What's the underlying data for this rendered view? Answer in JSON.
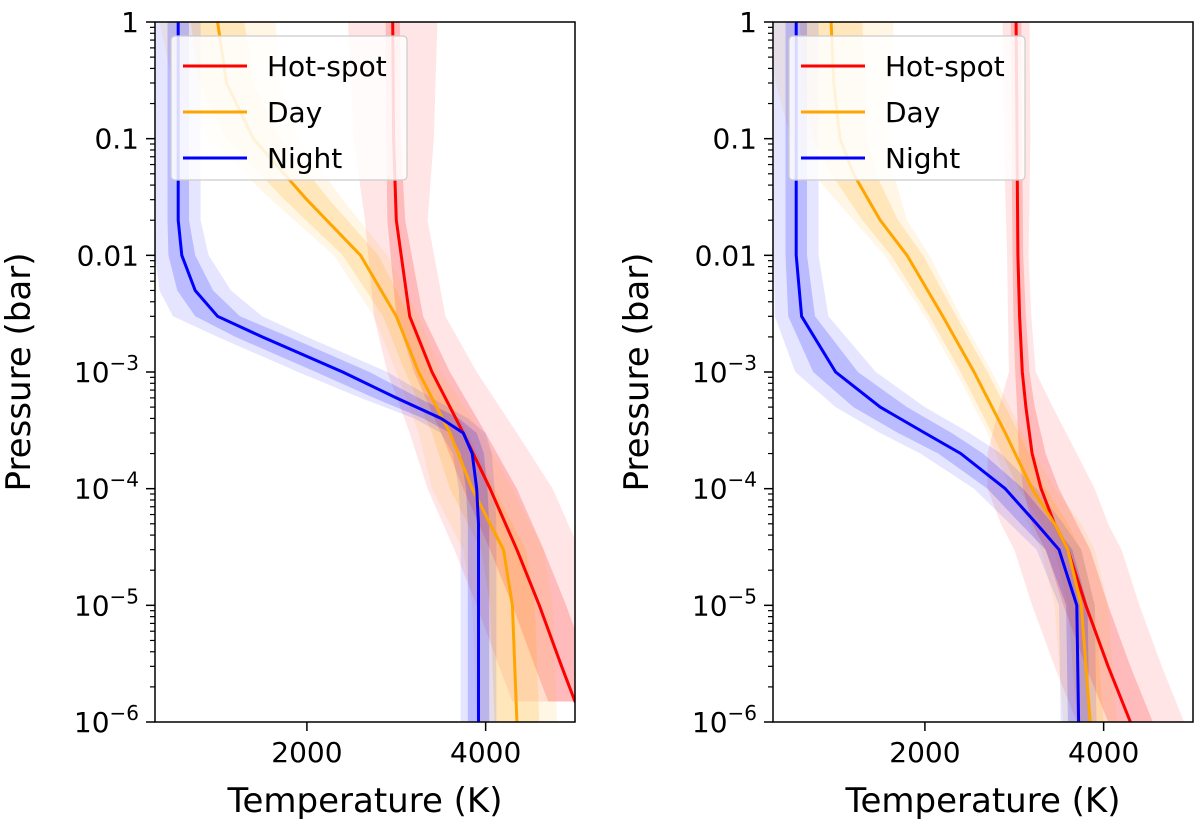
{
  "figure": {
    "tick_labels": {
      "y": [
        "10−6",
        "10−5",
        "10−4",
        "10−3",
        "0.01",
        "0.1",
        "1"
      ],
      "x": [
        "2000",
        "4000"
      ]
    }
  },
  "colors": {
    "Hot-spot": "#ff0000",
    "Day": "#ffa500",
    "Night": "#0000ff"
  },
  "chart_data": [
    {
      "type": "line",
      "xlabel": "Temperature (K)",
      "ylabel": "Pressure (bar)",
      "xlim": [
        300,
        5000
      ],
      "ylim": [
        1,
        1e-06
      ],
      "y_scale": "log",
      "y_inverted": true,
      "x_ticks": [
        2000,
        4000
      ],
      "y_ticks": [
        1e-06,
        1e-05,
        0.0001,
        0.001,
        0.01,
        0.1,
        1
      ],
      "legend": {
        "position": "top-left",
        "entries": [
          "Hot-spot",
          "Day",
          "Night"
        ]
      },
      "series": [
        {
          "name": "Hot-spot",
          "color": "#ff0000",
          "pressure": [
            1,
            0.1,
            0.02,
            0.003,
            0.001,
            0.0003,
            0.0001,
            3e-05,
            1e-05,
            3e-06,
            1.5e-06
          ],
          "temperature": [
            2960,
            2970,
            3000,
            3150,
            3400,
            3750,
            4050,
            4350,
            4600,
            4850,
            5000
          ],
          "band_inner_halfwidth": [
            80,
            80,
            100,
            150,
            200,
            250,
            300,
            300,
            300,
            300,
            300
          ],
          "band_outer_halfwidth": [
            500,
            450,
            350,
            400,
            500,
            600,
            700,
            700,
            700,
            700,
            700
          ]
        },
        {
          "name": "Day",
          "color": "#ffa500",
          "pressure": [
            1,
            0.3,
            0.1,
            0.03,
            0.01,
            0.003,
            0.001,
            0.0003,
            0.0001,
            5e-05,
            3e-05,
            1e-05,
            1e-06
          ],
          "temperature": [
            1000,
            1100,
            1400,
            2000,
            2600,
            3000,
            3250,
            3600,
            3850,
            4050,
            4200,
            4300,
            4350
          ],
          "band_inner_halfwidth": [
            300,
            300,
            300,
            250,
            200,
            150,
            150,
            200,
            250,
            250,
            250,
            250,
            250
          ],
          "band_outer_halfwidth": [
            650,
            600,
            500,
            400,
            300,
            250,
            250,
            350,
            450,
            450,
            450,
            450,
            450
          ]
        },
        {
          "name": "Night",
          "color": "#0000ff",
          "pressure": [
            1,
            0.1,
            0.02,
            0.01,
            0.005,
            0.003,
            0.002,
            0.001,
            0.0006,
            0.0004,
            0.0003,
            0.0002,
            0.0001,
            5e-05,
            1e-06
          ],
          "temperature": [
            560,
            560,
            560,
            600,
            750,
            1000,
            1500,
            2400,
            3000,
            3500,
            3750,
            3850,
            3900,
            3920,
            3920
          ],
          "band_inner_halfwidth": [
            120,
            120,
            120,
            150,
            200,
            250,
            300,
            300,
            250,
            200,
            150,
            130,
            120,
            120,
            120
          ],
          "band_outer_halfwidth": [
            250,
            250,
            250,
            300,
            400,
            500,
            500,
            500,
            400,
            300,
            250,
            220,
            200,
            200,
            200
          ]
        }
      ]
    },
    {
      "type": "line",
      "xlabel": "Temperature (K)",
      "ylabel": "Pressure (bar)",
      "xlim": [
        300,
        5000
      ],
      "ylim": [
        1,
        1e-06
      ],
      "y_scale": "log",
      "y_inverted": true,
      "x_ticks": [
        2000,
        4000
      ],
      "y_ticks": [
        1e-06,
        1e-05,
        0.0001,
        0.001,
        0.01,
        0.1,
        1
      ],
      "legend": {
        "position": "top-left",
        "entries": [
          "Hot-spot",
          "Day",
          "Night"
        ]
      },
      "series": [
        {
          "name": "Hot-spot",
          "color": "#ff0000",
          "pressure": [
            1,
            0.1,
            0.01,
            0.003,
            0.001,
            0.0005,
            0.0002,
            0.0001,
            5e-05,
            3e-05,
            1e-05,
            3e-06,
            1e-06
          ],
          "temperature": [
            3020,
            3030,
            3040,
            3060,
            3090,
            3130,
            3200,
            3300,
            3450,
            3600,
            3800,
            4050,
            4300
          ],
          "band_inner_halfwidth": [
            60,
            60,
            60,
            70,
            80,
            100,
            150,
            200,
            250,
            250,
            250,
            250,
            250
          ],
          "band_outer_halfwidth": [
            150,
            150,
            120,
            130,
            150,
            300,
            500,
            600,
            600,
            600,
            600,
            600,
            600
          ]
        },
        {
          "name": "Day",
          "color": "#ffa500",
          "pressure": [
            1,
            0.3,
            0.1,
            0.05,
            0.02,
            0.01,
            0.003,
            0.001,
            0.0003,
            0.0001,
            5e-05,
            3e-05,
            1e-05,
            1e-06
          ],
          "temperature": [
            950,
            980,
            1050,
            1200,
            1500,
            1800,
            2200,
            2550,
            2900,
            3200,
            3450,
            3600,
            3750,
            3850
          ],
          "band_inner_halfwidth": [
            350,
            350,
            300,
            250,
            200,
            180,
            150,
            150,
            150,
            150,
            150,
            150,
            150,
            150
          ],
          "band_outer_halfwidth": [
            700,
            650,
            550,
            450,
            300,
            250,
            200,
            200,
            200,
            250,
            300,
            300,
            300,
            300
          ]
        },
        {
          "name": "Night",
          "color": "#0000ff",
          "pressure": [
            1,
            0.1,
            0.01,
            0.003,
            0.001,
            0.0005,
            0.0003,
            0.0002,
            0.0001,
            5e-05,
            3e-05,
            1e-05,
            1e-06
          ],
          "temperature": [
            560,
            560,
            560,
            620,
            1000,
            1500,
            2000,
            2400,
            2900,
            3250,
            3500,
            3700,
            3720
          ],
          "band_inner_halfwidth": [
            120,
            120,
            120,
            150,
            250,
            300,
            300,
            250,
            200,
            180,
            150,
            120,
            120
          ],
          "band_outer_halfwidth": [
            250,
            250,
            250,
            300,
            450,
            500,
            500,
            450,
            350,
            300,
            250,
            200,
            200
          ]
        }
      ]
    }
  ]
}
